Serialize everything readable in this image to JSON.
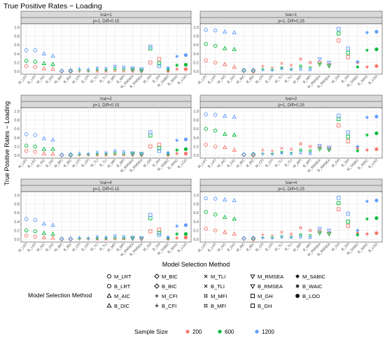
{
  "chart_data": {
    "type": "scatter",
    "title": "True Positive Rates − Loading",
    "xlabel": "Model Selection Method",
    "ylabel": "True Positive Rates − Loading",
    "ylim": [
      0,
      1
    ],
    "yticks": [
      "0.0",
      "0.2",
      "0.4",
      "0.6",
      "0.8",
      "1.0"
    ],
    "grid": true,
    "categories": [
      "M_LRT",
      "B_LRT",
      "M_AIC",
      "B_DIC",
      "M_BIC",
      "B_BIC",
      "M_CFI",
      "B_CFI",
      "M_TLI",
      "B_TLI",
      "M_MFI",
      "B_MFI",
      "M_RMSEA",
      "B_RMSEA",
      "M_GH",
      "B_GH",
      "M_SABIC",
      "B_WAIC",
      "B_LOO"
    ],
    "panels": [
      {
        "strip_top": "lvar=1",
        "strip_sub": "p=1, Diff=0.15",
        "series": [
          {
            "name": "200",
            "values": [
              0.12,
              0.1,
              0.06,
              0.05,
              0.0,
              0.0,
              0.0,
              0.0,
              0.0,
              0.0,
              0.02,
              0.01,
              0.01,
              0.0,
              0.2,
              0.28,
              0.0,
              0.05,
              0.05
            ]
          },
          {
            "name": "600",
            "values": [
              0.24,
              0.22,
              0.18,
              0.16,
              0.01,
              0.01,
              0.03,
              0.02,
              0.04,
              0.03,
              0.06,
              0.05,
              0.04,
              0.02,
              0.52,
              0.18,
              0.04,
              0.14,
              0.15
            ]
          },
          {
            "name": "1200",
            "values": [
              0.48,
              0.48,
              0.4,
              0.35,
              0.01,
              0.02,
              0.06,
              0.05,
              0.08,
              0.07,
              0.12,
              0.1,
              0.07,
              0.05,
              0.56,
              0.12,
              0.08,
              0.34,
              0.37
            ]
          }
        ]
      },
      {
        "strip_top": "lvar=1",
        "strip_sub": "p=1, Diff=0.25",
        "series": [
          {
            "name": "200",
            "values": [
              0.25,
              0.2,
              0.16,
              0.1,
              0.01,
              0.0,
              0.12,
              0.08,
              0.18,
              0.14,
              0.28,
              0.2,
              0.2,
              0.15,
              0.7,
              0.32,
              0.2,
              0.1,
              0.12
            ]
          },
          {
            "name": "600",
            "values": [
              0.62,
              0.58,
              0.52,
              0.5,
              0.02,
              0.02,
              0.05,
              0.04,
              0.08,
              0.05,
              0.12,
              0.08,
              0.16,
              0.12,
              0.86,
              0.42,
              0.1,
              0.48,
              0.5
            ]
          },
          {
            "name": "1200",
            "values": [
              0.94,
              0.93,
              0.9,
              0.88,
              0.03,
              0.03,
              0.03,
              0.02,
              0.06,
              0.04,
              0.05,
              0.04,
              0.28,
              0.2,
              0.96,
              0.52,
              0.22,
              0.88,
              0.9
            ]
          }
        ]
      },
      {
        "strip_top": "lvar=2",
        "strip_sub": "p=1, Diff=0.15",
        "series": [
          {
            "name": "200",
            "values": [
              0.1,
              0.08,
              0.04,
              0.03,
              0.0,
              0.0,
              0.0,
              0.0,
              0.0,
              0.0,
              0.02,
              0.01,
              0.01,
              0.0,
              0.2,
              0.24,
              0.0,
              0.04,
              0.04
            ]
          },
          {
            "name": "600",
            "values": [
              0.22,
              0.2,
              0.14,
              0.14,
              0.01,
              0.01,
              0.02,
              0.02,
              0.03,
              0.03,
              0.05,
              0.04,
              0.03,
              0.02,
              0.45,
              0.16,
              0.03,
              0.12,
              0.14
            ]
          },
          {
            "name": "1200",
            "values": [
              0.48,
              0.46,
              0.38,
              0.35,
              0.01,
              0.02,
              0.05,
              0.04,
              0.07,
              0.06,
              0.1,
              0.08,
              0.05,
              0.04,
              0.52,
              0.1,
              0.06,
              0.34,
              0.36
            ]
          }
        ]
      },
      {
        "strip_top": "lvar=2",
        "strip_sub": "p=1, Diff=0.25",
        "series": [
          {
            "name": "200",
            "values": [
              0.24,
              0.2,
              0.18,
              0.12,
              0.01,
              0.0,
              0.12,
              0.1,
              0.16,
              0.14,
              0.26,
              0.2,
              0.18,
              0.15,
              0.68,
              0.32,
              0.16,
              0.12,
              0.14
            ]
          },
          {
            "name": "600",
            "values": [
              0.6,
              0.56,
              0.48,
              0.46,
              0.02,
              0.02,
              0.04,
              0.04,
              0.07,
              0.05,
              0.12,
              0.1,
              0.14,
              0.12,
              0.82,
              0.42,
              0.1,
              0.46,
              0.5
            ]
          },
          {
            "name": "1200",
            "values": [
              0.93,
              0.92,
              0.89,
              0.87,
              0.02,
              0.03,
              0.03,
              0.02,
              0.05,
              0.04,
              0.06,
              0.04,
              0.22,
              0.18,
              0.9,
              0.52,
              0.2,
              0.86,
              0.88
            ]
          }
        ]
      },
      {
        "strip_top": "lvar=4",
        "strip_sub": "p=1, Diff=0.15",
        "series": [
          {
            "name": "200",
            "values": [
              0.08,
              0.06,
              0.04,
              0.03,
              0.0,
              0.0,
              0.0,
              0.0,
              0.0,
              0.0,
              0.01,
              0.01,
              0.01,
              0.0,
              0.18,
              0.22,
              0.0,
              0.03,
              0.04
            ]
          },
          {
            "name": "600",
            "values": [
              0.2,
              0.18,
              0.14,
              0.12,
              0.01,
              0.01,
              0.02,
              0.02,
              0.02,
              0.02,
              0.04,
              0.03,
              0.02,
              0.02,
              0.48,
              0.14,
              0.03,
              0.12,
              0.12
            ]
          },
          {
            "name": "1200",
            "values": [
              0.46,
              0.44,
              0.35,
              0.32,
              0.01,
              0.01,
              0.04,
              0.03,
              0.06,
              0.05,
              0.08,
              0.06,
              0.04,
              0.03,
              0.55,
              0.1,
              0.05,
              0.3,
              0.32
            ]
          }
        ]
      },
      {
        "strip_top": "lvar=4",
        "strip_sub": "p=1, Diff=0.25",
        "series": [
          {
            "name": "200",
            "values": [
              0.24,
              0.2,
              0.16,
              0.12,
              0.01,
              0.0,
              0.1,
              0.08,
              0.16,
              0.12,
              0.26,
              0.2,
              0.18,
              0.14,
              0.68,
              0.3,
              0.14,
              0.12,
              0.14
            ]
          },
          {
            "name": "600",
            "values": [
              0.62,
              0.56,
              0.5,
              0.46,
              0.02,
              0.02,
              0.04,
              0.04,
              0.06,
              0.05,
              0.1,
              0.08,
              0.14,
              0.12,
              0.82,
              0.4,
              0.1,
              0.46,
              0.48
            ]
          },
          {
            "name": "1200",
            "values": [
              0.93,
              0.92,
              0.9,
              0.88,
              0.02,
              0.03,
              0.03,
              0.02,
              0.05,
              0.04,
              0.05,
              0.04,
              0.24,
              0.2,
              0.94,
              0.58,
              0.2,
              0.86,
              0.88
            ]
          }
        ]
      }
    ],
    "legend_method_title": "Model Selection Method",
    "legend_methods": [
      {
        "label": "M_LRT",
        "shape": "circle-open"
      },
      {
        "label": "M_BIC",
        "shape": "diamond-open"
      },
      {
        "label": "M_TLI",
        "shape": "cross-x"
      },
      {
        "label": "M_RMSEA",
        "shape": "triangle-down-open"
      },
      {
        "label": "M_SABIC",
        "shape": "diamond-filled"
      },
      {
        "label": "B_LRT",
        "shape": "circle-open"
      },
      {
        "label": "B_BIC",
        "shape": "diamond-open"
      },
      {
        "label": "B_TLI",
        "shape": "cross-x"
      },
      {
        "label": "B_RMSEA",
        "shape": "triangle-down-open"
      },
      {
        "label": "B_WAIC",
        "shape": "asterisk"
      },
      {
        "label": "M_AIC",
        "shape": "triangle-open"
      },
      {
        "label": "M_CFI",
        "shape": "plus"
      },
      {
        "label": "M_MFI",
        "shape": "hash"
      },
      {
        "label": "M_GH",
        "shape": "square-open"
      },
      {
        "label": "B_LOO",
        "shape": "circle-filled"
      },
      {
        "label": "B_DIC",
        "shape": "triangle-open"
      },
      {
        "label": "B_CFI",
        "shape": "plus"
      },
      {
        "label": "B_MFI",
        "shape": "hash"
      },
      {
        "label": "B_GH",
        "shape": "square-open"
      }
    ],
    "legend_size_title": "Sample Size",
    "legend_sizes": [
      {
        "label": "200",
        "color": "#F8766D"
      },
      {
        "label": "600",
        "color": "#00BA38"
      },
      {
        "label": "1200",
        "color": "#619CFF"
      }
    ],
    "category_shapes": [
      "circle-open",
      "circle-open",
      "triangle-open",
      "triangle-open",
      "diamond-open",
      "diamond-open",
      "plus",
      "plus",
      "cross-x",
      "cross-x",
      "hash",
      "hash",
      "triangle-down-open",
      "triangle-down-open",
      "square-open",
      "square-open",
      "diamond-filled",
      "asterisk",
      "circle-filled"
    ],
    "colors": {
      "strip_bg": "#D9D9D9",
      "panel_border": "#333333",
      "grid": "#EBEBEB",
      "text": "#333333",
      "axis_text": "#4D4D4D"
    }
  }
}
